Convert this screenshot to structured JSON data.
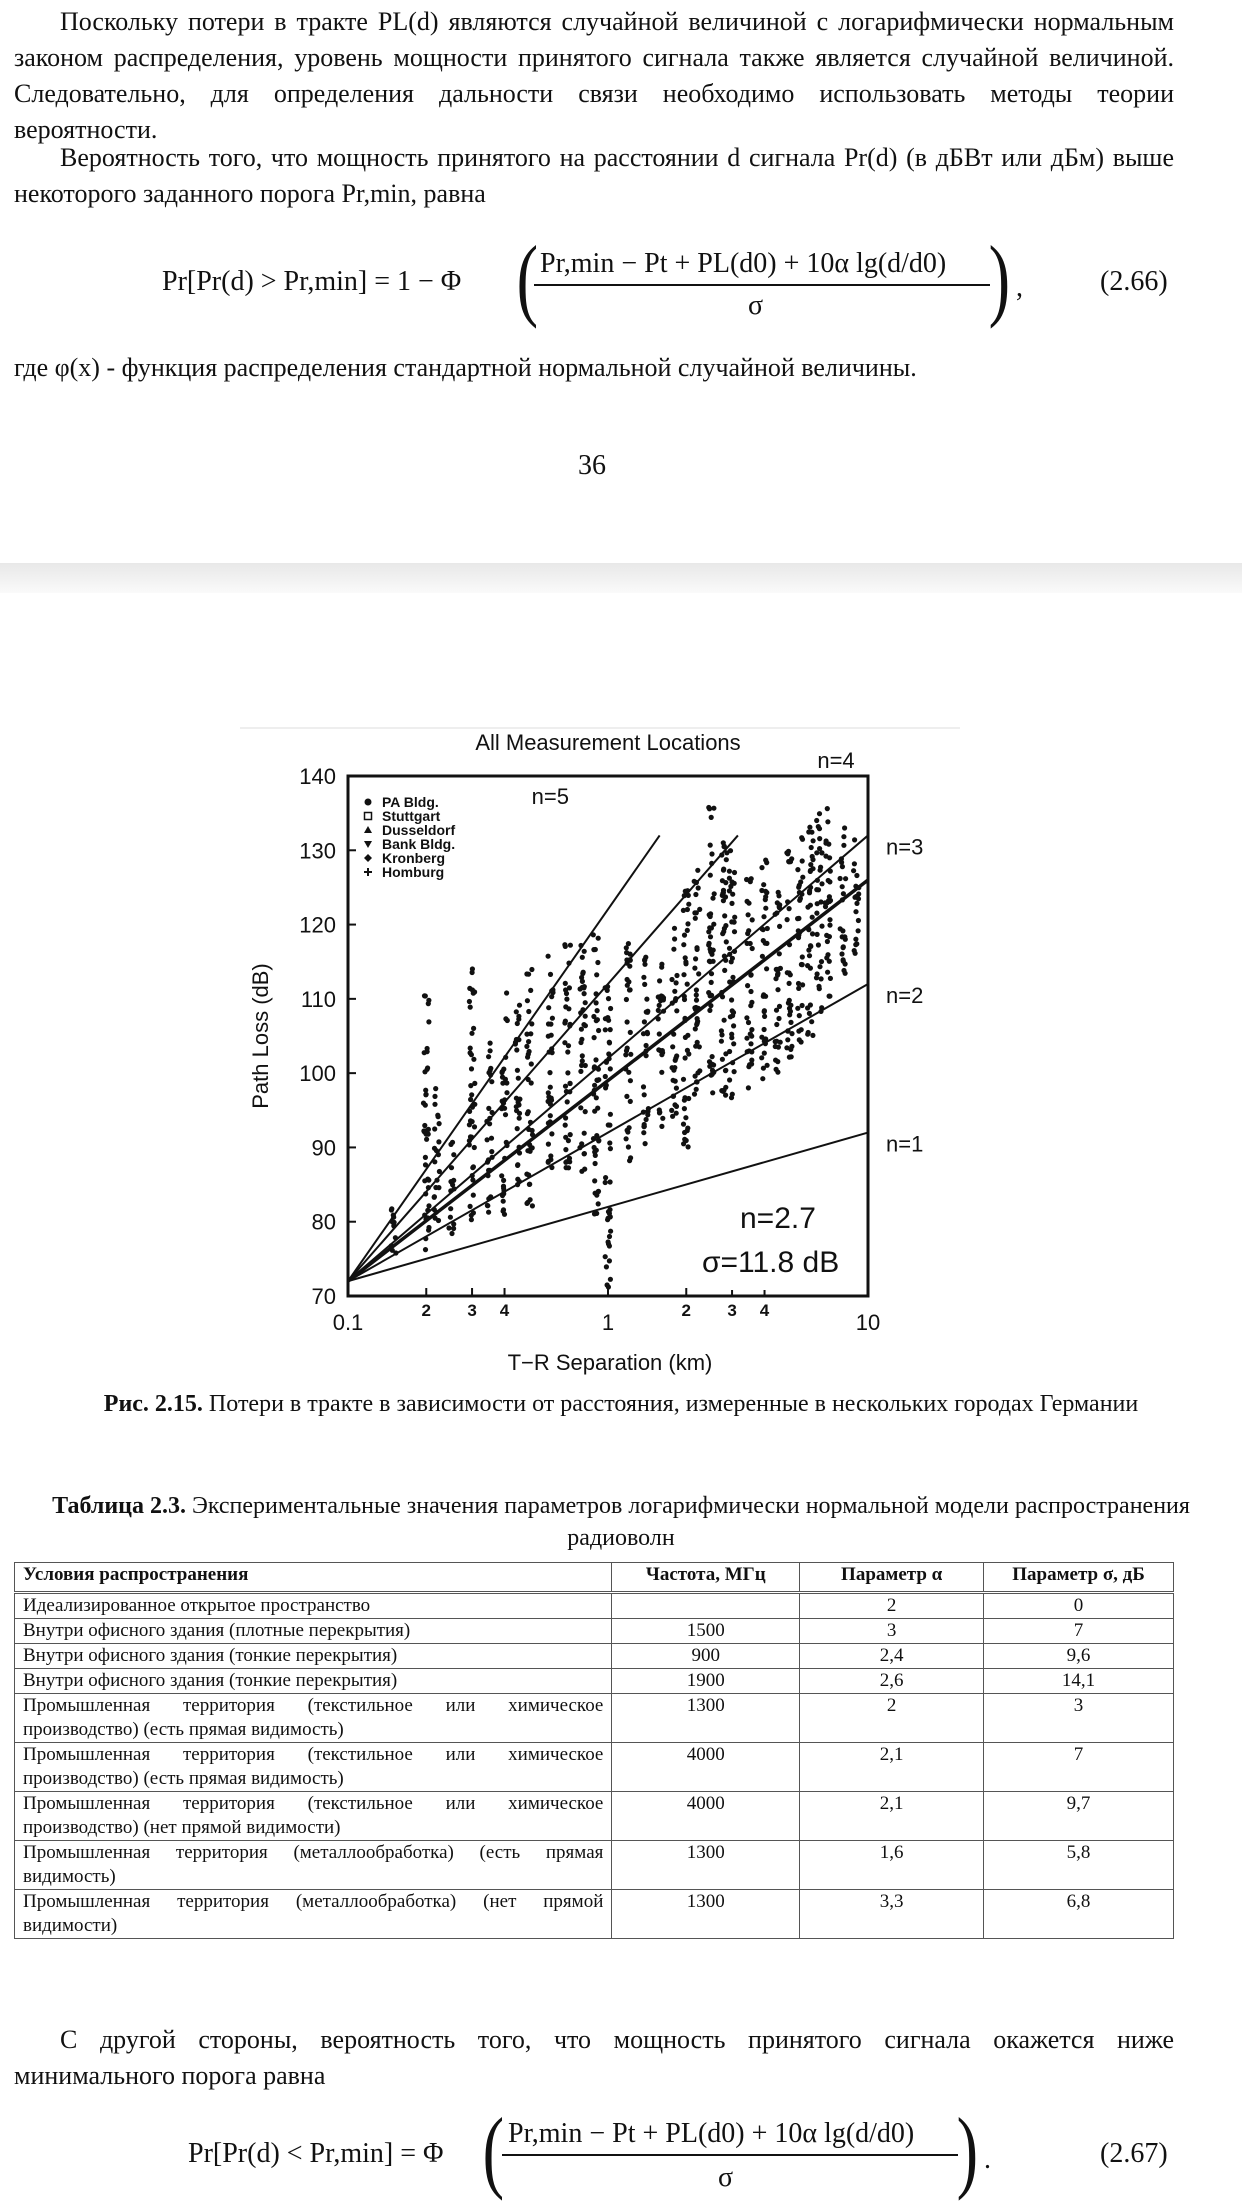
{
  "paragraph1": "Поскольку потери в тракте PL(d) являются случайной величиной с логарифмически нормальным законом распределения, уровень мощности принятого сигнала также является случайной величиной. Следовательно, для определения дальности связи необходимо использовать методы теории вероятности.",
  "paragraph2": "Вероятность того, что мощность принятого на расстоянии d сигнала Pr(d) (в дБВт или дБм) выше некоторого заданного порога Pr,min, равна",
  "eq1": {
    "lhs": "Pr[Pr(d) > Pr,min] = 1 − Φ",
    "numerator": "Pr,min − Pt + PL(d0) + 10α lg(d/d0)",
    "denominator": "σ",
    "number": "(2.66)"
  },
  "paragraph3": "где φ(x) - функция распределения стандартной нормальной случайной величины.",
  "page_number": "36",
  "chart_data": {
    "type": "scatter",
    "title": "All Measurement Locations",
    "xlabel": "T−R Separation (km)",
    "ylabel": "Path Loss (dB)",
    "xscale": "log",
    "xlim": [
      0.1,
      10
    ],
    "ylim": [
      70,
      140
    ],
    "x_tick_labels": [
      "0.1",
      "2",
      "3",
      "4",
      "1",
      "2",
      "3",
      "4",
      "10"
    ],
    "y_ticks": [
      "70",
      "80",
      "90",
      "100",
      "110",
      "120",
      "130",
      "140"
    ],
    "legend": [
      "PA Bldg.",
      "Stuttgart",
      "Dusseldorf",
      "Bank Bldg.",
      "Kronberg",
      "Homburg"
    ],
    "legend_position": "top-left",
    "reference_lines": [
      {
        "label": "n=1",
        "x": [
          0.1,
          10
        ],
        "y": [
          72,
          92
        ]
      },
      {
        "label": "n=2",
        "x": [
          0.1,
          10
        ],
        "y": [
          72,
          112
        ]
      },
      {
        "label": "n=3",
        "x": [
          0.1,
          10
        ],
        "y": [
          72,
          132
        ]
      },
      {
        "label": "n=4",
        "x": [
          0.1,
          3.16
        ],
        "y": [
          72,
          132
        ]
      },
      {
        "label": "n=5",
        "x": [
          0.1,
          1.58
        ],
        "y": [
          72,
          132
        ]
      }
    ],
    "fit": {
      "label": "n=2.7",
      "x": [
        0.1,
        10
      ],
      "y": [
        72,
        126
      ]
    },
    "annotations": [
      "n=2.7",
      "σ=11.8 dB"
    ],
    "clusters": [
      {
        "x": 0.15,
        "y": [
          75,
          85
        ]
      },
      {
        "x": 0.2,
        "y": [
          76,
          112
        ]
      },
      {
        "x": 0.22,
        "y": [
          80,
          100
        ]
      },
      {
        "x": 0.25,
        "y": [
          78,
          92
        ]
      },
      {
        "x": 0.3,
        "y": [
          79,
          115
        ]
      },
      {
        "x": 0.35,
        "y": [
          80,
          105
        ]
      },
      {
        "x": 0.4,
        "y": [
          81,
          112
        ]
      },
      {
        "x": 0.45,
        "y": [
          85,
          110
        ]
      },
      {
        "x": 0.5,
        "y": [
          82,
          115
        ]
      },
      {
        "x": 0.6,
        "y": [
          86,
          116
        ]
      },
      {
        "x": 0.7,
        "y": [
          84,
          118
        ]
      },
      {
        "x": 0.8,
        "y": [
          86,
          118
        ]
      },
      {
        "x": 0.9,
        "y": [
          80,
          120
        ]
      },
      {
        "x": 1.0,
        "y": [
          71,
          112
        ]
      },
      {
        "x": 1.2,
        "y": [
          88,
          118
        ]
      },
      {
        "x": 1.4,
        "y": [
          90,
          116
        ]
      },
      {
        "x": 1.6,
        "y": [
          92,
          115
        ]
      },
      {
        "x": 1.8,
        "y": [
          94,
          120
        ]
      },
      {
        "x": 2.0,
        "y": [
          90,
          125
        ]
      },
      {
        "x": 2.2,
        "y": [
          95,
          128
        ]
      },
      {
        "x": 2.5,
        "y": [
          95,
          136
        ]
      },
      {
        "x": 2.8,
        "y": [
          96,
          132
        ]
      },
      {
        "x": 3.0,
        "y": [
          96,
          130
        ]
      },
      {
        "x": 3.5,
        "y": [
          98,
          128
        ]
      },
      {
        "x": 4.0,
        "y": [
          98,
          130
        ]
      },
      {
        "x": 4.5,
        "y": [
          100,
          128
        ]
      },
      {
        "x": 5.0,
        "y": [
          102,
          130
        ]
      },
      {
        "x": 5.5,
        "y": [
          104,
          132
        ]
      },
      {
        "x": 6.0,
        "y": [
          104,
          134
        ]
      },
      {
        "x": 6.5,
        "y": [
          108,
          135
        ]
      },
      {
        "x": 7.0,
        "y": [
          110,
          136
        ]
      },
      {
        "x": 8.0,
        "y": [
          112,
          134
        ]
      },
      {
        "x": 9.0,
        "y": [
          115,
          132
        ]
      }
    ]
  },
  "figure_caption": {
    "label": "Рис. 2.15.",
    "text": " Потери в тракте в зависимости от расстояния, измеренные в нескольких городах Германии"
  },
  "table_caption": {
    "label": "Таблица 2.3.",
    "text": " Экспериментальные значения параметров логарифмически нормальной модели распространения радиоволн"
  },
  "table": {
    "headers": [
      "Условия распространения",
      "Частота, МГц",
      "Параметр α",
      "Параметр σ, дБ"
    ],
    "rows": [
      [
        "Идеализированное открытое пространство",
        "",
        "2",
        "0"
      ],
      [
        "Внутри офисного здания (плотные перекрытия)",
        "1500",
        "3",
        "7"
      ],
      [
        "Внутри офисного здания (тонкие перекрытия)",
        "900",
        "2,4",
        "9,6"
      ],
      [
        "Внутри офисного здания (тонкие перекрытия)",
        "1900",
        "2,6",
        "14,1"
      ],
      [
        "Промышленная территория (текстильное или химическое производство) (есть прямая видимость)",
        "1300",
        "2",
        "3"
      ],
      [
        "Промышленная территория (текстильное или химическое производство) (есть прямая видимость)",
        "4000",
        "2,1",
        "7"
      ],
      [
        "Промышленная территория (текстильное или химическое производство) (нет прямой видимости)",
        "4000",
        "2,1",
        "9,7"
      ],
      [
        "Промышленная территория (металлообработка) (есть прямая видимость)",
        "1300",
        "1,6",
        "5,8"
      ],
      [
        "Промышленная территория (металлообработка) (нет прямой видимости)",
        "1300",
        "3,3",
        "6,8"
      ]
    ]
  },
  "paragraph4": "С другой стороны, вероятность того, что мощность принятого сигнала окажется ниже минимального порога равна",
  "eq2": {
    "lhs": "Pr[Pr(d) < Pr,min] = Φ",
    "numerator": "Pr,min − Pt + PL(d0) + 10α lg(d/d0)",
    "denominator": "σ",
    "number": "(2.67)"
  }
}
